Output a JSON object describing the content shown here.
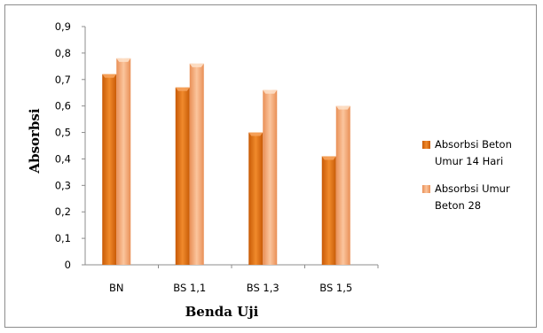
{
  "chart_data": {
    "type": "bar",
    "categories": [
      "BN",
      "BS 1,1",
      "BS 1,3",
      "BS 1,5"
    ],
    "series": [
      {
        "name": "Absorbsi Beton Umur 14 Hari",
        "values": [
          0.72,
          0.67,
          0.5,
          0.41
        ],
        "color": "#e36c09"
      },
      {
        "name": "Absorbsi Umur Beton 28",
        "values": [
          0.78,
          0.76,
          0.66,
          0.6
        ],
        "color": "#f4a46b"
      }
    ],
    "yticks": [
      "0",
      "0,1",
      "0,2",
      "0,3",
      "0,4",
      "0,5",
      "0,6",
      "0,7",
      "0,8",
      "0,9"
    ],
    "ylim": [
      0,
      0.9
    ],
    "xlabel": "Benda Uji",
    "ylabel": "Absorbsi",
    "legend_position": "right",
    "grid": false
  }
}
